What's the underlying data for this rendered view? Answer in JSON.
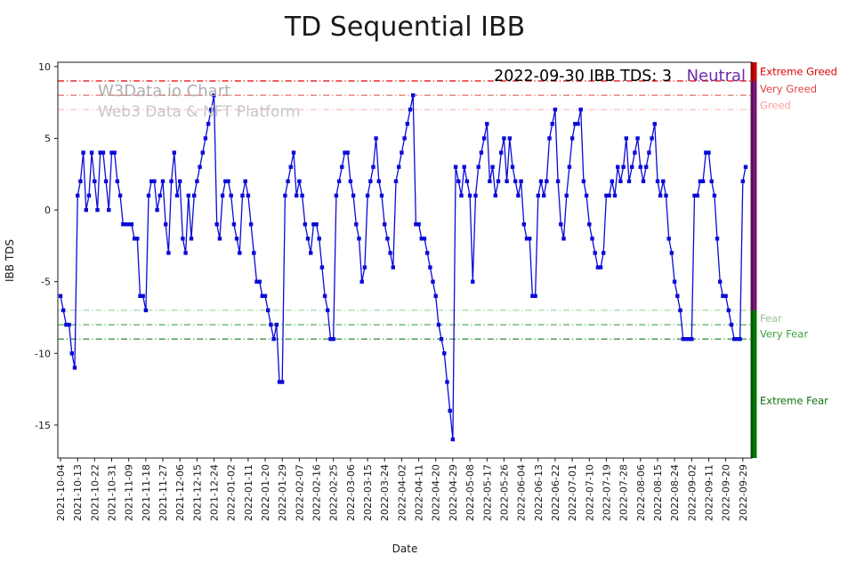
{
  "title": "TD Sequential IBB",
  "annotation": {
    "text": "2022-09-30 IBB TDS: 3",
    "state": "Neutral",
    "state_color": "#6f2da8"
  },
  "watermark": {
    "line1": "W3Data.io Chart",
    "line2": "Web3 Data & NFT Platform"
  },
  "chart_data": {
    "type": "line",
    "title": "TD Sequential IBB",
    "xlabel": "Date",
    "ylabel": "IBB TDS",
    "ylim": [
      -17.3,
      10.3
    ],
    "yticks": [
      10,
      5,
      0,
      -5,
      -10,
      -15
    ],
    "grid": false,
    "legend": "none",
    "x_tick_labels": [
      "2021-10-04",
      "2021-10-13",
      "2021-10-22",
      "2021-10-31",
      "2021-11-09",
      "2021-11-18",
      "2021-11-27",
      "2021-12-06",
      "2021-12-15",
      "2021-12-24",
      "2022-01-02",
      "2022-01-11",
      "2022-01-20",
      "2022-01-29",
      "2022-02-07",
      "2022-02-16",
      "2022-02-25",
      "2022-03-06",
      "2022-03-15",
      "2022-03-24",
      "2022-04-02",
      "2022-04-11",
      "2022-04-20",
      "2022-04-29",
      "2022-05-08",
      "2022-05-17",
      "2022-05-26",
      "2022-06-04",
      "2022-06-13",
      "2022-06-22",
      "2022-07-01",
      "2022-07-10",
      "2022-07-19",
      "2022-07-28",
      "2022-08-06",
      "2022-08-15",
      "2022-08-24",
      "2022-09-02",
      "2022-09-11",
      "2022-09-20",
      "2022-09-29"
    ],
    "series": [
      {
        "name": "IBB TDS",
        "color": "#0b0bd8",
        "values": [
          -6,
          -7,
          -8,
          -8,
          -10,
          -11,
          1,
          2,
          4,
          0,
          1,
          4,
          2,
          0,
          4,
          4,
          2,
          0,
          4,
          4,
          2,
          1,
          -1,
          -1,
          -1,
          -1,
          -2,
          -2,
          -6,
          -6,
          -7,
          1,
          2,
          2,
          0,
          1,
          2,
          -1,
          -3,
          2,
          4,
          1,
          2,
          -2,
          -3,
          1,
          -2,
          1,
          2,
          3,
          4,
          5,
          6,
          7,
          8,
          -1,
          -2,
          1,
          2,
          2,
          1,
          -1,
          -2,
          -3,
          1,
          2,
          1,
          -1,
          -3,
          -5,
          -5,
          -6,
          -6,
          -7,
          -8,
          -9,
          -8,
          -12,
          -12,
          1,
          2,
          3,
          4,
          1,
          2,
          1,
          -1,
          -2,
          -3,
          -1,
          -1,
          -2,
          -4,
          -6,
          -7,
          -9,
          -9,
          1,
          2,
          3,
          4,
          4,
          2,
          1,
          -1,
          -2,
          -5,
          -4,
          1,
          2,
          3,
          5,
          2,
          1,
          -1,
          -2,
          -3,
          -4,
          2,
          3,
          4,
          5,
          6,
          7,
          8,
          -1,
          -1,
          -2,
          -2,
          -3,
          -4,
          -5,
          -6,
          -8,
          -9,
          -10,
          -12,
          -14,
          -16,
          3,
          2,
          1,
          3,
          2,
          1,
          -5,
          1,
          3,
          4,
          5,
          6,
          2,
          3,
          1,
          2,
          4,
          5,
          2,
          5,
          3,
          2,
          1,
          2,
          -1,
          -2,
          -2,
          -6,
          -6,
          1,
          2,
          1,
          2,
          5,
          6,
          7,
          2,
          -1,
          -2,
          1,
          3,
          5,
          6,
          6,
          7,
          2,
          1,
          -1,
          -2,
          -3,
          -4,
          -4,
          -3,
          1,
          1,
          2,
          1,
          3,
          2,
          3,
          5,
          2,
          3,
          4,
          5,
          3,
          2,
          3,
          4,
          5,
          6,
          2,
          1,
          2,
          1,
          -2,
          -3,
          -5,
          -6,
          -7,
          -9,
          -9,
          -9,
          -9,
          1,
          1,
          2,
          2,
          4,
          4,
          2,
          1,
          -2,
          -5,
          -6,
          -6,
          -7,
          -8,
          -9,
          -9,
          -9,
          2,
          3
        ]
      }
    ],
    "thresholds": [
      {
        "label": "Extreme Greed",
        "value": 9,
        "label_value": 9.65,
        "color": "#dd0000",
        "label_color": "#dd0000"
      },
      {
        "label": "Very Greed",
        "value": 8,
        "label_value": 8.45,
        "color": "#e46a6a",
        "label_color": "#e04545"
      },
      {
        "label": "Greed",
        "value": 7,
        "label_value": 7.3,
        "color": "#ffb3b3",
        "label_color": "#ff9f9f"
      },
      {
        "label": "Fear",
        "value": -7,
        "label_value": -7.55,
        "color": "#a8d4a8",
        "label_color": "#96c596"
      },
      {
        "label": "Very Fear",
        "value": -8,
        "label_value": -8.65,
        "color": "#55ad55",
        "label_color": "#3da23d"
      },
      {
        "label": "Extreme Fear",
        "value": -9,
        "label_value": -13.3,
        "color": "#1a7a1a",
        "label_color": "#0a6e0a"
      }
    ],
    "sentiment_bar": [
      {
        "zone": "greed",
        "from": 10.3,
        "to": 9,
        "color": "#cc0000"
      },
      {
        "zone": "neutral",
        "from": 9,
        "to": -7,
        "color": "#7c1377"
      },
      {
        "zone": "fear",
        "from": -7,
        "to": -17.3,
        "color": "#007700"
      }
    ]
  }
}
